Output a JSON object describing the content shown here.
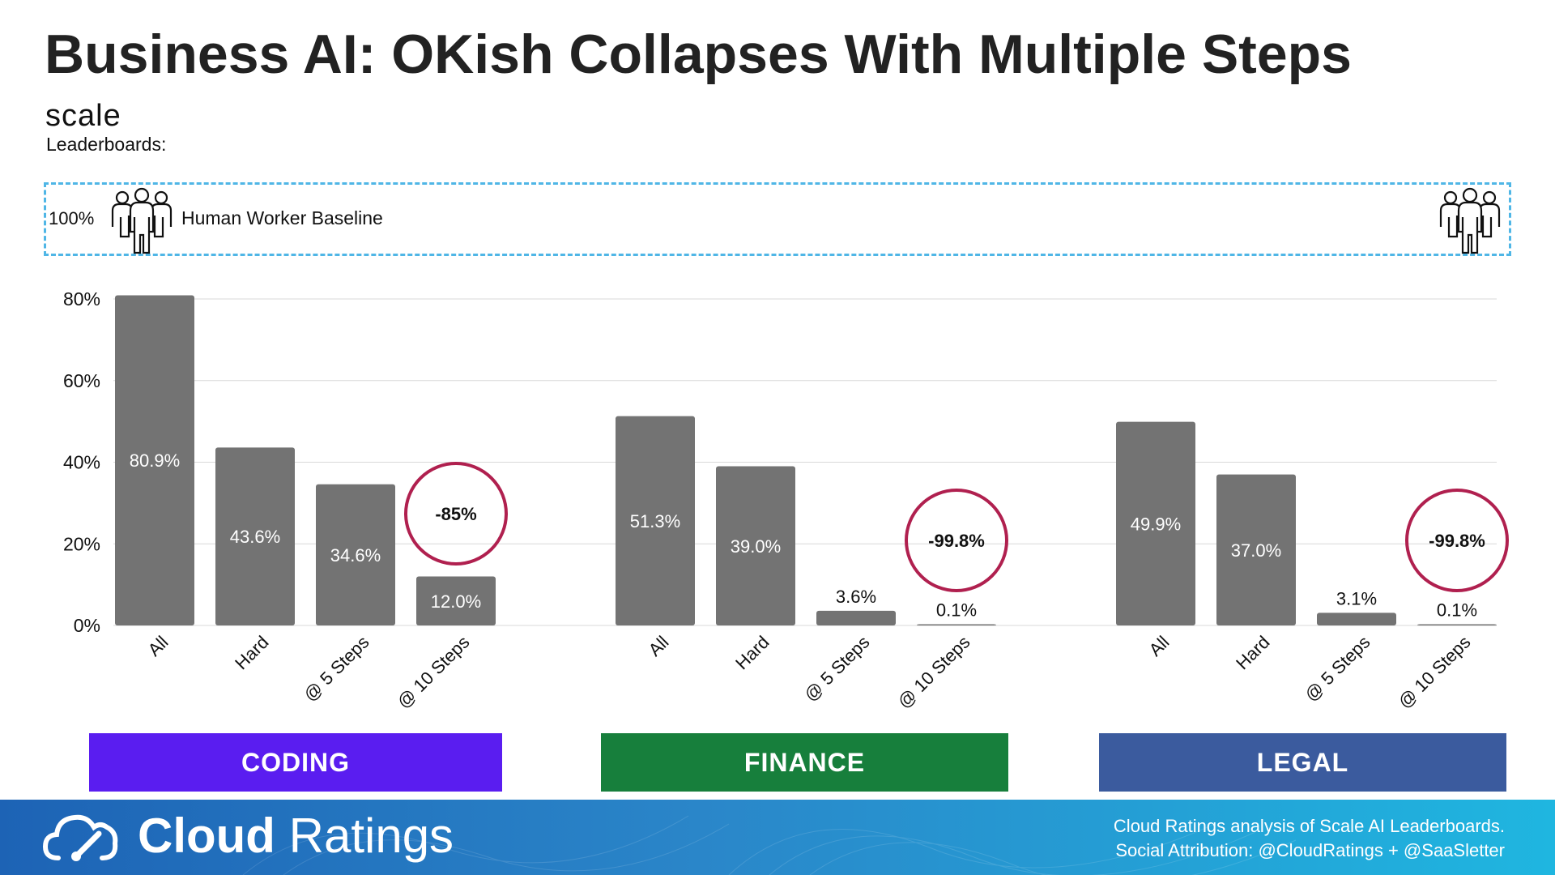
{
  "title": "Business AI: OKish Collapses With Multiple Steps",
  "source_logo": "scale",
  "source_sub": "Leaderboards:",
  "baseline": {
    "value_label": "100%",
    "label": "Human Worker Baseline",
    "icon": "people-group-icon",
    "border_color": "#4fb6e6"
  },
  "chart_data": {
    "type": "bar",
    "ylim": [
      0,
      80
    ],
    "yticks": [
      "0%",
      "20%",
      "40%",
      "60%",
      "80%"
    ],
    "ytick_values": [
      0,
      20,
      40,
      60,
      80
    ],
    "grid": true,
    "bar_color": "#737373",
    "callout_color": "#b0204f",
    "groups": [
      {
        "name": "CODING",
        "color": "#5a1df0",
        "categories": [
          "All",
          "Hard",
          "@ 5 Steps",
          "@ 10 Steps"
        ],
        "values": [
          80.9,
          43.6,
          34.6,
          12.0
        ],
        "labels": [
          "80.9%",
          "43.6%",
          "34.6%",
          "12.0%"
        ],
        "callout": "-85%"
      },
      {
        "name": "FINANCE",
        "color": "#177f3c",
        "categories": [
          "All",
          "Hard",
          "@ 5 Steps",
          "@ 10 Steps"
        ],
        "values": [
          51.3,
          39.0,
          3.6,
          0.1
        ],
        "labels": [
          "51.3%",
          "39.0%",
          "3.6%",
          "0.1%"
        ],
        "callout": "-99.8%"
      },
      {
        "name": "LEGAL",
        "color": "#3b5b9e",
        "categories": [
          "All",
          "Hard",
          "@ 5 Steps",
          "@ 10 Steps"
        ],
        "values": [
          49.9,
          37.0,
          3.1,
          0.1
        ],
        "labels": [
          "49.9%",
          "37.0%",
          "3.1%",
          "0.1%"
        ],
        "callout": "-99.8%"
      }
    ]
  },
  "footer": {
    "brand_bold": "Cloud",
    "brand_light": " Ratings",
    "credit_line1": "Cloud Ratings analysis of Scale AI Leaderboards.",
    "credit_line2": "Social Attribution: @CloudRatings + @SaaSletter"
  }
}
